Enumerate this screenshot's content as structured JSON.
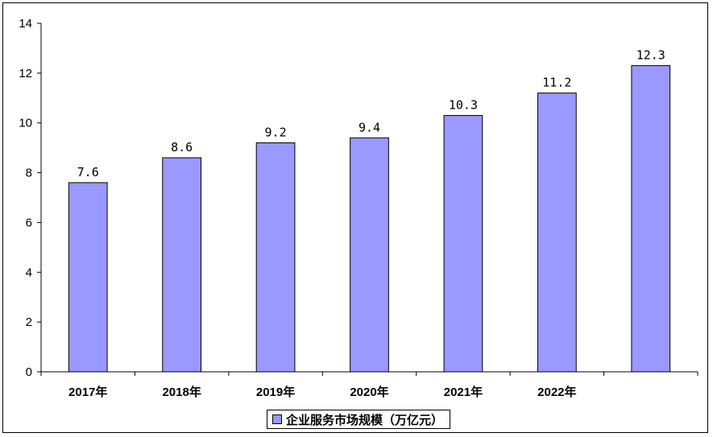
{
  "chart_data": {
    "type": "bar",
    "categories": [
      "2017年",
      "2018年",
      "2019年",
      "2020年",
      "2021年",
      "2022年",
      ""
    ],
    "series": [
      {
        "name": "企业服务市场规模（万亿元）",
        "values": [
          7.6,
          8.6,
          9.2,
          9.4,
          10.3,
          11.2,
          12.3
        ]
      }
    ],
    "data_labels": [
      "7.6",
      "8.6",
      "9.2",
      "9.4",
      "10.3",
      "11.2",
      "12.3"
    ],
    "ylim": [
      0,
      14
    ],
    "yticks": [
      0,
      2,
      4,
      6,
      8,
      10,
      12,
      14
    ],
    "grid": false,
    "legend_position": "bottom",
    "bar_color": "#9999ff",
    "title": "",
    "xlabel": "",
    "ylabel": ""
  }
}
